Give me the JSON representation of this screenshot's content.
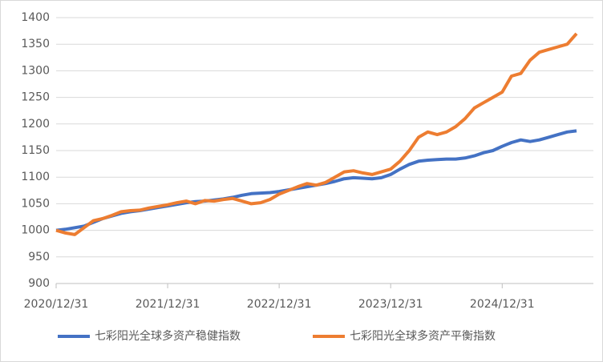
{
  "chart_data": {
    "type": "line",
    "categories": [
      "2020/12/31",
      null,
      null,
      null,
      null,
      null,
      null,
      null,
      null,
      null,
      null,
      null,
      "2021/12/31",
      null,
      null,
      null,
      null,
      null,
      null,
      null,
      null,
      null,
      null,
      null,
      "2022/12/31",
      null,
      null,
      null,
      null,
      null,
      null,
      null,
      null,
      null,
      null,
      null,
      "2023/12/31",
      null,
      null,
      null,
      null,
      null,
      null,
      null,
      null,
      null,
      null,
      null,
      "2024/12/31",
      null,
      null,
      null,
      null,
      null,
      null,
      null,
      null
    ],
    "series": [
      {
        "name": "七彩阳光全球多资产稳健指数",
        "color": "#4472c4",
        "values": [
          1000,
          1002,
          1005,
          1008,
          1015,
          1022,
          1027,
          1032,
          1035,
          1037,
          1040,
          1043,
          1046,
          1049,
          1052,
          1054,
          1055,
          1057,
          1059,
          1062,
          1066,
          1069,
          1070,
          1071,
          1073,
          1076,
          1079,
          1082,
          1085,
          1088,
          1092,
          1097,
          1099,
          1098,
          1097,
          1099,
          1105,
          1115,
          1124,
          1130,
          1132,
          1133,
          1134,
          1134,
          1136,
          1140,
          1146,
          1150,
          1158,
          1165,
          1170,
          1167,
          1170,
          1175,
          1180,
          1185,
          1187
        ]
      },
      {
        "name": "七彩阳光全球多资产平衡指数",
        "color": "#ed7d31",
        "values": [
          1000,
          995,
          992,
          1005,
          1018,
          1022,
          1028,
          1035,
          1037,
          1038,
          1042,
          1045,
          1048,
          1052,
          1055,
          1050,
          1056,
          1055,
          1058,
          1060,
          1055,
          1050,
          1052,
          1058,
          1068,
          1075,
          1082,
          1088,
          1085,
          1090,
          1100,
          1110,
          1112,
          1108,
          1105,
          1110,
          1115,
          1130,
          1150,
          1175,
          1185,
          1180,
          1185,
          1195,
          1210,
          1230,
          1240,
          1250,
          1260,
          1290,
          1295,
          1320,
          1335,
          1340,
          1345,
          1350,
          1370
        ]
      }
    ],
    "ylim": [
      900,
      1400
    ],
    "yticks": [
      900,
      950,
      1000,
      1050,
      1100,
      1150,
      1200,
      1250,
      1300,
      1350,
      1400
    ],
    "grid": true,
    "legend": "bottom"
  }
}
